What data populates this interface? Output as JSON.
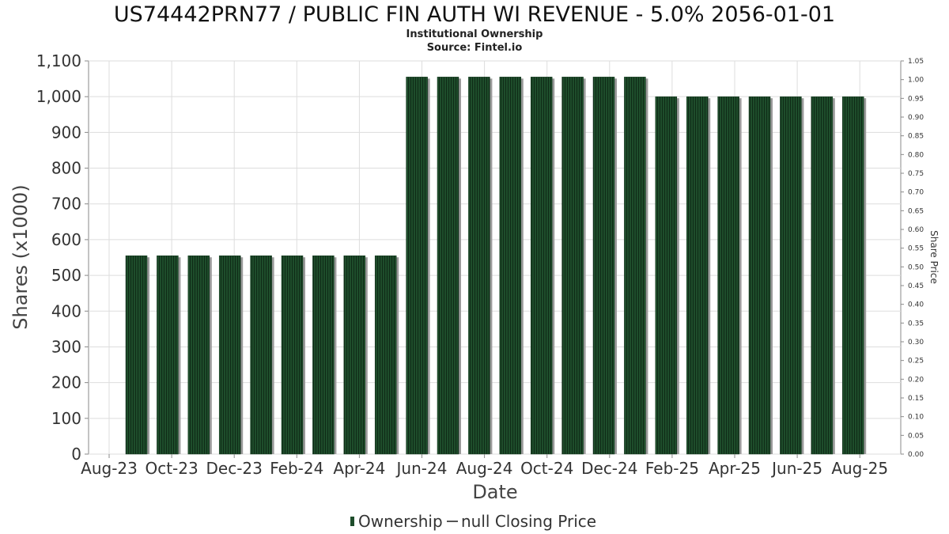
{
  "chart_data": {
    "type": "bar",
    "title": "US74442PRN77 / PUBLIC FIN AUTH WI REVENUE - 5.0% 2056-01-01",
    "subtitle": "Institutional Ownership",
    "source": "Source: Fintel.io",
    "xlabel": "Date",
    "ylabel": "Shares (x1000)",
    "y2label": "Share Price",
    "ylim": [
      0,
      1100
    ],
    "y2lim": [
      0,
      1.05
    ],
    "grid": true,
    "legend_position": "bottom",
    "x_tick_labels": [
      "Aug-23",
      "Oct-23",
      "Dec-23",
      "Feb-24",
      "Apr-24",
      "Jun-24",
      "Aug-24",
      "Oct-24",
      "Dec-24",
      "Feb-25",
      "Apr-25",
      "Jun-25",
      "Aug-25"
    ],
    "y_tick_labels": [
      "0",
      "100",
      "200",
      "300",
      "400",
      "500",
      "600",
      "700",
      "800",
      "900",
      "1,000",
      "1,100"
    ],
    "y2_tick_labels": [
      "0.00",
      "0.05",
      "0.10",
      "0.15",
      "0.20",
      "0.25",
      "0.30",
      "0.35",
      "0.40",
      "0.45",
      "0.50",
      "0.55",
      "0.60",
      "0.65",
      "0.70",
      "0.75",
      "0.80",
      "0.85",
      "0.90",
      "0.95",
      "1.00",
      "1.05"
    ],
    "series": [
      {
        "name": "Ownership",
        "color": "#1e4d2b",
        "values": [
          555,
          555,
          555,
          555,
          555,
          555,
          555,
          555,
          555,
          1055,
          1055,
          1055,
          1055,
          1055,
          1055,
          1055,
          1055,
          1000,
          1000,
          1000,
          1000,
          1000,
          1000,
          1000
        ]
      }
    ],
    "legend": [
      {
        "label": "Ownership",
        "symbol": "bar",
        "color": "#1e4d2b"
      },
      {
        "label": "null Closing Price",
        "symbol": "line",
        "color": "#555555"
      }
    ]
  }
}
